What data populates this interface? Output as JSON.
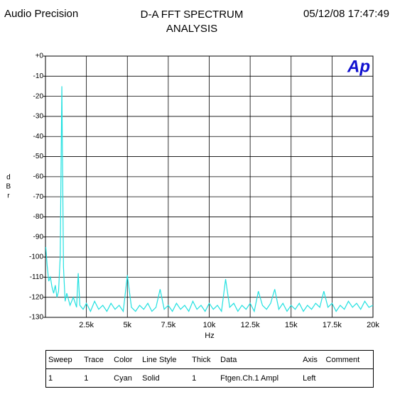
{
  "header": {
    "left": "Audio Precision",
    "right": "05/12/08 17:47:49"
  },
  "chart_data": {
    "type": "line",
    "title": "D-A FFT SPECTRUM ANALYSIS",
    "logo": "Ap",
    "xlabel": "Hz",
    "ylabel": "dBr",
    "xlim": [
      0,
      20000
    ],
    "xticks": [
      {
        "value": 2500,
        "label": "2.5k"
      },
      {
        "value": 5000,
        "label": "5k"
      },
      {
        "value": 7500,
        "label": "7.5k"
      },
      {
        "value": 10000,
        "label": "10k"
      },
      {
        "value": 12500,
        "label": "12.5k"
      },
      {
        "value": 15000,
        "label": "15k"
      },
      {
        "value": 17500,
        "label": "17.5k"
      },
      {
        "value": 20000,
        "label": "20k"
      }
    ],
    "ylim": [
      -130,
      0
    ],
    "yticks": [
      {
        "value": 0,
        "label": "+0"
      },
      -10,
      -20,
      -30,
      -40,
      -50,
      -60,
      -70,
      -80,
      -90,
      -100,
      -110,
      -120,
      -130
    ],
    "grid": true,
    "x": [
      20,
      100,
      200,
      300,
      400,
      500,
      600,
      700,
      800,
      900,
      1000,
      1100,
      1200,
      1300,
      1500,
      1700,
      1900,
      2000,
      2100,
      2300,
      2500,
      2750,
      3000,
      3250,
      3500,
      3750,
      4000,
      4250,
      4500,
      4750,
      5000,
      5250,
      5500,
      5750,
      6000,
      6250,
      6500,
      6750,
      7000,
      7250,
      7500,
      7750,
      8000,
      8250,
      8500,
      8750,
      9000,
      9250,
      9500,
      9750,
      10000,
      10250,
      10500,
      10750,
      11000,
      11250,
      11500,
      11750,
      12000,
      12250,
      12500,
      12750,
      13000,
      13250,
      13500,
      13750,
      14000,
      14250,
      14500,
      14750,
      15000,
      15250,
      15500,
      15750,
      16000,
      16250,
      16500,
      16750,
      17000,
      17250,
      17500,
      17750,
      18000,
      18250,
      18500,
      18750,
      19000,
      19250,
      19500,
      19750,
      20000
    ],
    "series": [
      {
        "name": "Ftgen.Ch.1 Ampl",
        "color": "#22e0e0",
        "values": [
          -95,
          -104,
          -112,
          -110,
          -115,
          -118,
          -114,
          -120,
          -117,
          -100,
          -15,
          -105,
          -122,
          -118,
          -124,
          -120,
          -125,
          -108,
          -124,
          -126,
          -123,
          -127,
          -122,
          -126,
          -124,
          -127,
          -123,
          -126,
          -124,
          -127,
          -109,
          -125,
          -127,
          -124,
          -126,
          -123,
          -127,
          -125,
          -116,
          -126,
          -124,
          -127,
          -123,
          -126,
          -124,
          -127,
          -122,
          -126,
          -124,
          -127,
          -123,
          -126,
          -124,
          -127,
          -111,
          -125,
          -123,
          -127,
          -124,
          -126,
          -123,
          -127,
          -117,
          -124,
          -126,
          -123,
          -116,
          -126,
          -123,
          -127,
          -124,
          -126,
          -123,
          -127,
          -124,
          -126,
          -123,
          -125,
          -117,
          -125,
          -123,
          -127,
          -124,
          -126,
          -122,
          -125,
          -123,
          -126,
          -122,
          -125,
          -124
        ]
      }
    ]
  },
  "legend_table": {
    "header": [
      "Sweep",
      "Trace",
      "Color",
      "Line Style",
      "Thick",
      "Data",
      "Axis",
      "Comment"
    ],
    "rows": [
      [
        "1",
        "1",
        "Cyan",
        "Solid",
        "1",
        "Ftgen.Ch.1 Ampl",
        "Left"
      ]
    ]
  }
}
